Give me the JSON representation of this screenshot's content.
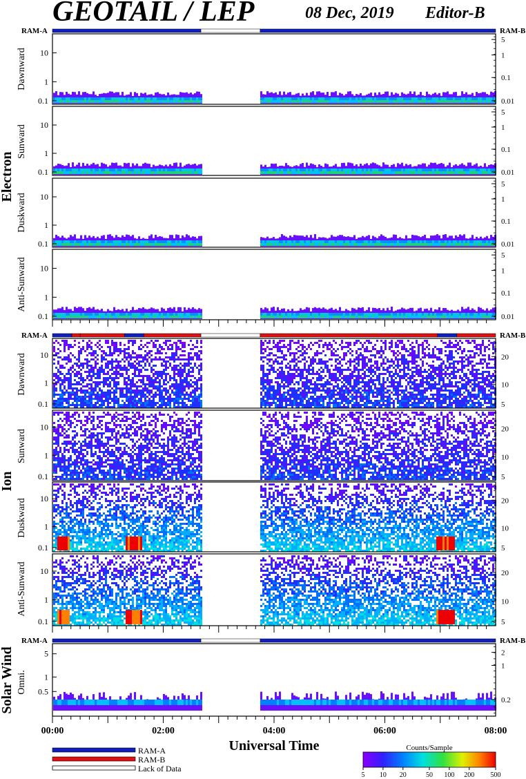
{
  "header": {
    "title": "GEOTAIL / LEP",
    "date": "08 Dec, 2019",
    "editor": "Editor-B"
  },
  "status_bar_labels": {
    "left": "RAM-A",
    "right": "RAM-B"
  },
  "time_axis": {
    "label": "Universal Time",
    "ticks": [
      "00:00",
      "02:00",
      "04:00",
      "06:00",
      "08:00"
    ],
    "range_hours": [
      0,
      8
    ]
  },
  "colorbar": {
    "label": "Counts/Sample",
    "ticks": [
      "5",
      "10",
      "20",
      "50",
      "100",
      "200",
      "500"
    ],
    "range": [
      5,
      500
    ],
    "scale": "log"
  },
  "legend": [
    {
      "label": "RAM-A",
      "color": "#1020c0"
    },
    {
      "label": "RAM-B",
      "color": "#e01010"
    },
    {
      "label": "Lack of Data",
      "color": "#ffffff"
    }
  ],
  "chart_data": {
    "type": "heatmap",
    "data_gap_hours": [
      2.68,
      3.75
    ],
    "groups": [
      {
        "name": "Electron",
        "mode_bar": [
          {
            "start": 0,
            "end": 2.68,
            "mode": "RAM-A"
          },
          {
            "start": 2.68,
            "end": 3.75,
            "mode": "Lack of Data"
          },
          {
            "start": 3.75,
            "end": 8,
            "mode": "RAM-A"
          }
        ],
        "panels": [
          {
            "direction": "Dawnward",
            "left_ticks": [
              "10",
              "1",
              "0.1"
            ],
            "right_ticks": [
              "5",
              "1",
              "0.1",
              "0.01"
            ]
          },
          {
            "direction": "Sunward",
            "left_ticks": [
              "10",
              "1",
              "0.1"
            ],
            "right_ticks": [
              "5",
              "1",
              "0.1",
              "0.01"
            ]
          },
          {
            "direction": "Duskward",
            "left_ticks": [
              "10",
              "1",
              "0.1"
            ],
            "right_ticks": [
              "5",
              "1",
              "0.1",
              "0.01"
            ]
          },
          {
            "direction": "Anti-Sunward",
            "left_ticks": [
              "10",
              "1",
              "0.1"
            ],
            "right_ticks": [
              "5",
              "1",
              "0.1",
              "0.01"
            ]
          }
        ]
      },
      {
        "name": "Ion",
        "mode_bar": [
          {
            "start": 0,
            "end": 0.35,
            "mode": "RAM-A"
          },
          {
            "start": 0.35,
            "end": 0.5,
            "mode": "RAM-B"
          },
          {
            "start": 0.5,
            "end": 1.3,
            "mode": "RAM-B"
          },
          {
            "start": 1.3,
            "end": 1.65,
            "mode": "RAM-A"
          },
          {
            "start": 1.65,
            "end": 2.68,
            "mode": "RAM-B"
          },
          {
            "start": 2.68,
            "end": 3.75,
            "mode": "Lack of Data"
          },
          {
            "start": 3.75,
            "end": 6.95,
            "mode": "RAM-B"
          },
          {
            "start": 6.95,
            "end": 7.3,
            "mode": "RAM-A"
          },
          {
            "start": 7.3,
            "end": 8,
            "mode": "RAM-B"
          }
        ],
        "panels": [
          {
            "direction": "Dawnward",
            "left_ticks": [
              "10",
              "1",
              "0.1"
            ],
            "right_ticks": [
              "20",
              "10",
              "5"
            ]
          },
          {
            "direction": "Sunward",
            "left_ticks": [
              "10",
              "1",
              "0.1"
            ],
            "right_ticks": [
              "20",
              "10",
              "5"
            ]
          },
          {
            "direction": "Duskward",
            "left_ticks": [
              "10",
              "1",
              "0.1"
            ],
            "right_ticks": [
              "20",
              "10",
              "5"
            ]
          },
          {
            "direction": "Anti-Sunward",
            "left_ticks": [
              "10",
              "1",
              "0.1"
            ],
            "right_ticks": [
              "20",
              "10",
              "5"
            ]
          }
        ]
      },
      {
        "name": "Solar Wind",
        "mode_bar": [
          {
            "start": 0,
            "end": 2.68,
            "mode": "RAM-A"
          },
          {
            "start": 2.68,
            "end": 3.75,
            "mode": "Lack of Data"
          },
          {
            "start": 3.75,
            "end": 8,
            "mode": "RAM-A"
          }
        ],
        "panels": [
          {
            "direction": "Omni.",
            "left_ticks": [
              "5",
              "1",
              "0.5"
            ],
            "right_ticks": [
              "2",
              "1",
              "0.2"
            ]
          }
        ]
      }
    ]
  }
}
